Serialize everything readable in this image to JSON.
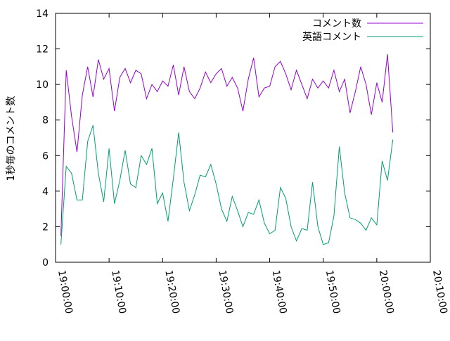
{
  "chart_data": {
    "type": "line",
    "ylabel": "1秒毎のコメント数",
    "x": [
      "19:01:00",
      "19:02:00",
      "19:03:00",
      "19:04:00",
      "19:05:00",
      "19:06:00",
      "19:07:00",
      "19:08:00",
      "19:09:00",
      "19:10:00",
      "19:11:00",
      "19:12:00",
      "19:13:00",
      "19:14:00",
      "19:15:00",
      "19:16:00",
      "19:17:00",
      "19:18:00",
      "19:19:00",
      "19:20:00",
      "19:21:00",
      "19:22:00",
      "19:23:00",
      "19:24:00",
      "19:25:00",
      "19:26:00",
      "19:27:00",
      "19:28:00",
      "19:29:00",
      "19:30:00",
      "19:31:00",
      "19:32:00",
      "19:33:00",
      "19:34:00",
      "19:35:00",
      "19:36:00",
      "19:37:00",
      "19:38:00",
      "19:39:00",
      "19:40:00",
      "19:41:00",
      "19:42:00",
      "19:43:00",
      "19:44:00",
      "19:45:00",
      "19:46:00",
      "19:47:00",
      "19:48:00",
      "19:49:00",
      "19:50:00",
      "19:51:00",
      "19:52:00",
      "19:53:00",
      "19:54:00",
      "19:55:00",
      "19:56:00",
      "19:57:00",
      "19:58:00",
      "19:59:00",
      "20:00:00",
      "20:01:00",
      "20:02:00",
      "20:03:00"
    ],
    "series": [
      {
        "name": "コメント数",
        "color": "#9400d3",
        "values": [
          1.5,
          10.8,
          8.2,
          6.2,
          9.4,
          11.0,
          9.3,
          11.4,
          10.3,
          10.9,
          8.5,
          10.4,
          10.9,
          10.1,
          10.8,
          10.6,
          9.2,
          10.0,
          9.6,
          10.2,
          9.9,
          11.1,
          9.4,
          11.0,
          9.6,
          9.2,
          9.8,
          10.7,
          10.1,
          10.6,
          10.9,
          9.9,
          10.4,
          9.8,
          8.5,
          10.3,
          11.5,
          9.3,
          9.8,
          9.9,
          11.0,
          11.3,
          10.6,
          9.7,
          10.8,
          10.0,
          9.2,
          10.3,
          9.8,
          10.2,
          9.8,
          10.8,
          9.6,
          10.3,
          8.4,
          9.6,
          11.0,
          10.0,
          8.3,
          10.1,
          9.0,
          11.7,
          7.3
        ]
      },
      {
        "name": "英語コメント",
        "color": "#009e73",
        "values": [
          1.0,
          5.4,
          5.0,
          3.5,
          3.5,
          6.8,
          7.7,
          5.0,
          3.4,
          6.4,
          3.3,
          4.6,
          6.3,
          4.4,
          4.2,
          6.0,
          5.5,
          6.4,
          3.3,
          3.9,
          2.3,
          4.7,
          7.3,
          4.5,
          2.9,
          3.8,
          4.9,
          4.8,
          5.5,
          4.4,
          3.0,
          2.3,
          3.7,
          2.9,
          2.0,
          2.8,
          2.7,
          3.5,
          2.2,
          1.6,
          1.8,
          4.2,
          3.6,
          2.0,
          1.2,
          1.9,
          1.8,
          4.5,
          2.0,
          1.0,
          1.1,
          2.6,
          6.5,
          3.9,
          2.5,
          2.4,
          2.2,
          1.8,
          2.5,
          2.1,
          5.7,
          4.6,
          6.9
        ]
      }
    ],
    "xlim": [
      "19:00:00",
      "20:10:00"
    ],
    "xticks": [
      "19:00:00",
      "19:10:00",
      "19:20:00",
      "19:30:00",
      "19:40:00",
      "19:50:00",
      "20:00:00",
      "20:10:00"
    ],
    "ylim": [
      0,
      14
    ],
    "yticks": [
      0,
      2,
      4,
      6,
      8,
      10,
      12,
      14
    ],
    "legend": "top right"
  }
}
